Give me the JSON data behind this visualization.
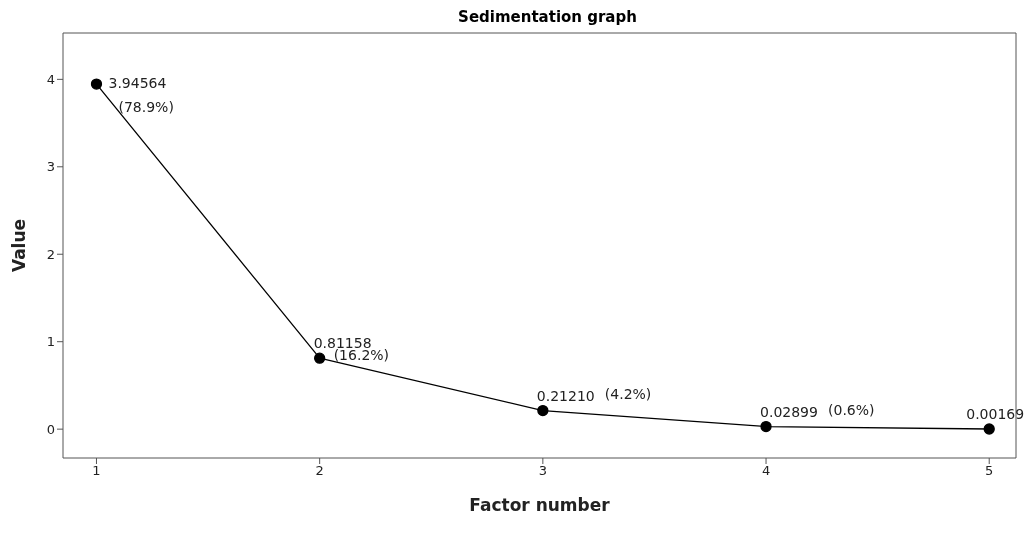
{
  "chart_data": {
    "type": "line",
    "title": "Sedimentation graph",
    "xlabel": "Factor number",
    "ylabel": "Value",
    "x": [
      1,
      2,
      3,
      4,
      5
    ],
    "series": [
      {
        "color": "#000000",
        "values": [
          3.94564,
          0.81158,
          0.2121,
          0.02899,
          0.00169
        ],
        "value_labels": [
          "3.94564",
          "0.81158",
          "0.21210",
          "0.02899",
          "0.00169"
        ]
      }
    ],
    "xlim": [
      0.85,
      5.12
    ],
    "xticks": [
      1,
      2,
      3,
      4,
      5
    ],
    "ylim": [
      -0.33,
      4.53
    ],
    "yticks": [
      0,
      1,
      2,
      3,
      4
    ],
    "annotations": [
      "(78.9%)",
      "(16.2%)",
      "(4.2%)",
      "(0.6%)"
    ],
    "grid": false,
    "marker": "circle",
    "line_style": "solid"
  }
}
